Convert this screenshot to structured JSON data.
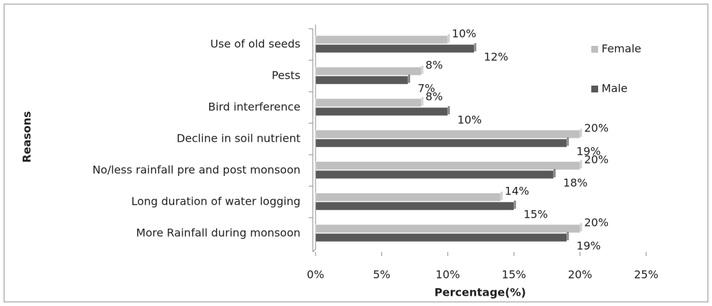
{
  "chart_data": {
    "type": "barh",
    "categories": [
      "Use of old seeds",
      "Pests",
      "Bird interference",
      "Decline in soil nutrient",
      "No/less rainfall pre and post monsoon",
      "Long duration of water logging",
      "More Rainfall during monsoon"
    ],
    "series": [
      {
        "name": "Female",
        "color": "#bfbfbf",
        "values": [
          10,
          8,
          8,
          20,
          20,
          14,
          20
        ],
        "value_labels": [
          "10%",
          "8%",
          "8%",
          "20%",
          "20%",
          "14%",
          "20%"
        ]
      },
      {
        "name": "Male",
        "color": "#595959",
        "values": [
          12,
          7,
          10,
          19,
          18,
          15,
          19
        ],
        "value_labels": [
          "12%",
          "7%",
          "10%",
          "19%",
          "18%",
          "15%",
          "19%"
        ]
      }
    ],
    "xlim": [
      0,
      25
    ],
    "xticks": [
      {
        "value": 0,
        "label": "0%"
      },
      {
        "value": 5,
        "label": "5%"
      },
      {
        "value": 10,
        "label": "10%"
      },
      {
        "value": 15,
        "label": "15%"
      },
      {
        "value": 20,
        "label": "20%"
      },
      {
        "value": 25,
        "label": "25%"
      }
    ],
    "x_label": "Percentage(%)",
    "y_label": "Reasons",
    "legend": "right"
  }
}
